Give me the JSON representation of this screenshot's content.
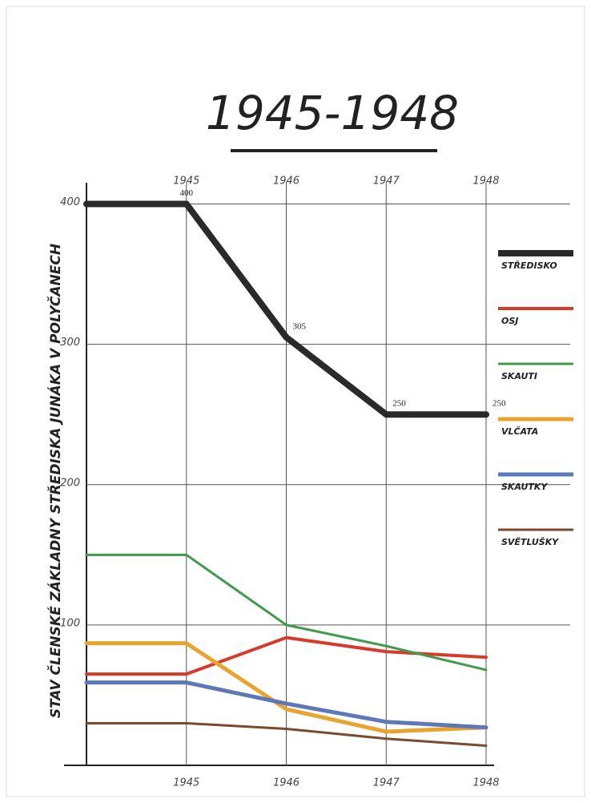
{
  "chart_data": {
    "type": "line",
    "title": "1945-1948",
    "y_label": "STAV ČLENSKÉ ZÁKLADNY STŘEDISKA JUNÁKA V POLYČANECH",
    "x": [
      1945,
      1946,
      1947,
      1948
    ],
    "xlim": [
      1944,
      1948
    ],
    "xticks": [
      1945,
      1946,
      1947,
      1948
    ],
    "ylim": [
      0,
      410
    ],
    "yticks": [
      100,
      200,
      300,
      400
    ],
    "grid": true,
    "legend": "right",
    "series": [
      {
        "name": "STŘEDISKO",
        "color": "#2a2a2a",
        "width": 8,
        "values": [
          400,
          305,
          250,
          250
        ],
        "labelled": true
      },
      {
        "name": "OSJ",
        "color": "#d83a2a",
        "width": 4,
        "values": [
          65,
          91,
          81,
          77
        ]
      },
      {
        "name": "SKAUTI",
        "color": "#3f9a4a",
        "width": 3,
        "values": [
          150,
          100,
          85,
          68
        ]
      },
      {
        "name": "VLČATA",
        "color": "#e9a430",
        "width": 5,
        "values": [
          87,
          40,
          24,
          27
        ]
      },
      {
        "name": "SKAUTKY",
        "color": "#5d78b8",
        "width": 5,
        "values": [
          59,
          44,
          31,
          27
        ]
      },
      {
        "name": "SVĚTLUŠKY",
        "color": "#7a4a2a",
        "width": 3,
        "values": [
          30,
          26,
          19,
          14
        ]
      }
    ]
  }
}
